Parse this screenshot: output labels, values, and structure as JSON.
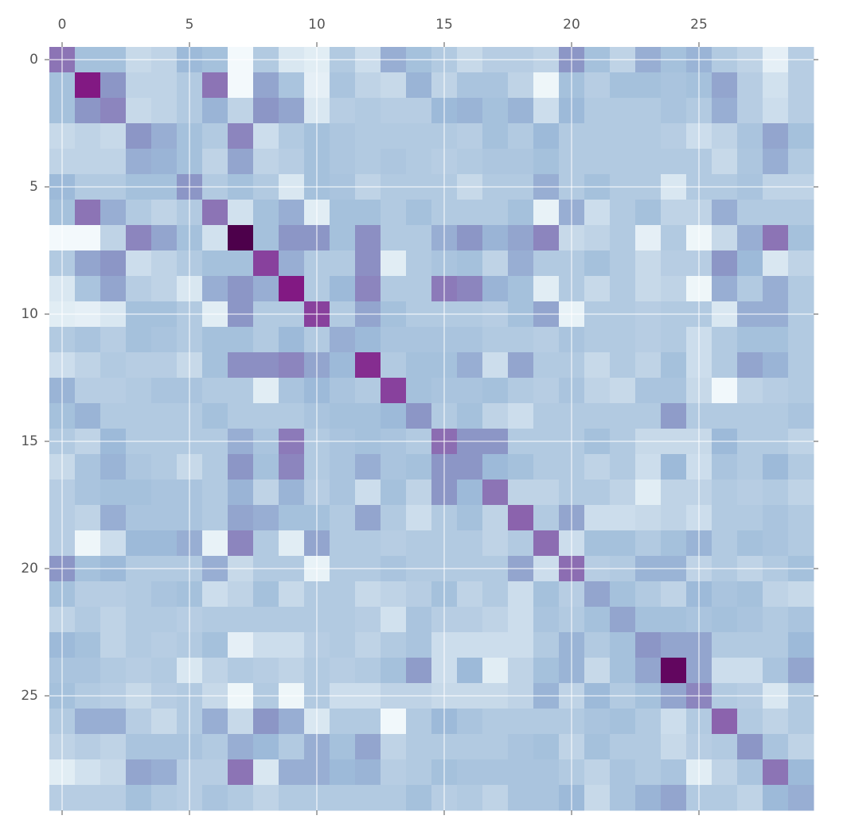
{
  "chart_data": {
    "type": "heatmap",
    "xlim": [
      -0.5,
      29.5
    ],
    "ylim": [
      29.5,
      -0.5
    ],
    "xticks": [
      0,
      5,
      10,
      15,
      20,
      25
    ],
    "yticks": [
      0,
      5,
      10,
      15,
      20,
      25
    ],
    "grid": true,
    "clim": [
      0,
      1
    ],
    "colors": [
      "#f7fcfd",
      "#e0ecf4",
      "#bfd3e6",
      "#9ebcda",
      "#8c96c6",
      "#8c6bb1",
      "#88419d",
      "#810f7c",
      "#4d004b"
    ],
    "z": [
      [
        0.6,
        0.35,
        0.35,
        0.22,
        0.25,
        0.38,
        0.35,
        0.02,
        0.3,
        0.15,
        0.12,
        0.3,
        0.2,
        0.42,
        0.35,
        0.3,
        0.22,
        0.28,
        0.28,
        0.25,
        0.5,
        0.35,
        0.25,
        0.42,
        0.35,
        0.4,
        0.3,
        0.25,
        0.1,
        0.28
      ],
      [
        0.35,
        0.85,
        0.5,
        0.25,
        0.25,
        0.3,
        0.6,
        0.02,
        0.45,
        0.33,
        0.1,
        0.33,
        0.25,
        0.22,
        0.4,
        0.25,
        0.33,
        0.33,
        0.25,
        0.05,
        0.35,
        0.28,
        0.35,
        0.35,
        0.33,
        0.35,
        0.45,
        0.28,
        0.18,
        0.28
      ],
      [
        0.35,
        0.5,
        0.55,
        0.22,
        0.25,
        0.3,
        0.4,
        0.25,
        0.5,
        0.45,
        0.15,
        0.28,
        0.3,
        0.28,
        0.28,
        0.38,
        0.4,
        0.35,
        0.4,
        0.2,
        0.38,
        0.3,
        0.3,
        0.3,
        0.33,
        0.3,
        0.42,
        0.28,
        0.2,
        0.28
      ],
      [
        0.22,
        0.25,
        0.22,
        0.5,
        0.42,
        0.35,
        0.3,
        0.55,
        0.2,
        0.3,
        0.35,
        0.32,
        0.3,
        0.3,
        0.3,
        0.3,
        0.28,
        0.35,
        0.3,
        0.38,
        0.3,
        0.3,
        0.3,
        0.3,
        0.28,
        0.2,
        0.25,
        0.33,
        0.45,
        0.35
      ],
      [
        0.25,
        0.25,
        0.25,
        0.42,
        0.4,
        0.35,
        0.25,
        0.45,
        0.25,
        0.28,
        0.35,
        0.32,
        0.3,
        0.32,
        0.3,
        0.28,
        0.3,
        0.32,
        0.32,
        0.35,
        0.3,
        0.3,
        0.3,
        0.3,
        0.3,
        0.3,
        0.22,
        0.32,
        0.42,
        0.3
      ],
      [
        0.38,
        0.3,
        0.3,
        0.35,
        0.35,
        0.5,
        0.3,
        0.35,
        0.3,
        0.15,
        0.35,
        0.33,
        0.25,
        0.3,
        0.3,
        0.3,
        0.22,
        0.3,
        0.3,
        0.42,
        0.3,
        0.35,
        0.3,
        0.3,
        0.15,
        0.3,
        0.3,
        0.33,
        0.25,
        0.25
      ],
      [
        0.35,
        0.6,
        0.42,
        0.3,
        0.25,
        0.3,
        0.6,
        0.18,
        0.35,
        0.42,
        0.12,
        0.35,
        0.35,
        0.3,
        0.35,
        0.3,
        0.3,
        0.3,
        0.35,
        0.08,
        0.42,
        0.2,
        0.3,
        0.35,
        0.25,
        0.25,
        0.42,
        0.3,
        0.3,
        0.3
      ],
      [
        0.02,
        0.02,
        0.25,
        0.55,
        0.45,
        0.35,
        0.18,
        1.0,
        0.35,
        0.5,
        0.5,
        0.35,
        0.52,
        0.3,
        0.3,
        0.42,
        0.5,
        0.4,
        0.45,
        0.55,
        0.22,
        0.25,
        0.3,
        0.1,
        0.3,
        0.05,
        0.22,
        0.42,
        0.6,
        0.35
      ],
      [
        0.3,
        0.45,
        0.5,
        0.2,
        0.25,
        0.3,
        0.35,
        0.35,
        0.75,
        0.42,
        0.3,
        0.3,
        0.52,
        0.12,
        0.3,
        0.33,
        0.35,
        0.25,
        0.42,
        0.3,
        0.3,
        0.35,
        0.3,
        0.22,
        0.28,
        0.28,
        0.5,
        0.38,
        0.15,
        0.25
      ],
      [
        0.15,
        0.33,
        0.45,
        0.28,
        0.25,
        0.15,
        0.42,
        0.5,
        0.42,
        0.85,
        0.3,
        0.38,
        0.55,
        0.3,
        0.3,
        0.58,
        0.55,
        0.4,
        0.35,
        0.12,
        0.3,
        0.22,
        0.3,
        0.22,
        0.25,
        0.05,
        0.42,
        0.3,
        0.42,
        0.3
      ],
      [
        0.12,
        0.1,
        0.15,
        0.35,
        0.35,
        0.3,
        0.12,
        0.5,
        0.3,
        0.3,
        0.75,
        0.3,
        0.45,
        0.35,
        0.3,
        0.3,
        0.3,
        0.28,
        0.35,
        0.45,
        0.08,
        0.3,
        0.3,
        0.28,
        0.3,
        0.3,
        0.15,
        0.42,
        0.42,
        0.3
      ],
      [
        0.3,
        0.33,
        0.28,
        0.35,
        0.33,
        0.3,
        0.35,
        0.35,
        0.3,
        0.38,
        0.3,
        0.42,
        0.38,
        0.33,
        0.33,
        0.33,
        0.33,
        0.3,
        0.3,
        0.28,
        0.33,
        0.3,
        0.3,
        0.28,
        0.3,
        0.2,
        0.3,
        0.35,
        0.35,
        0.3
      ],
      [
        0.2,
        0.25,
        0.3,
        0.28,
        0.28,
        0.22,
        0.35,
        0.52,
        0.52,
        0.55,
        0.45,
        0.38,
        0.8,
        0.3,
        0.35,
        0.35,
        0.42,
        0.2,
        0.45,
        0.3,
        0.3,
        0.22,
        0.3,
        0.25,
        0.35,
        0.2,
        0.3,
        0.45,
        0.4,
        0.3
      ],
      [
        0.4,
        0.28,
        0.28,
        0.3,
        0.33,
        0.33,
        0.3,
        0.3,
        0.12,
        0.33,
        0.38,
        0.33,
        0.3,
        0.75,
        0.35,
        0.33,
        0.33,
        0.35,
        0.3,
        0.28,
        0.33,
        0.25,
        0.22,
        0.33,
        0.33,
        0.22,
        0.03,
        0.25,
        0.28,
        0.3
      ],
      [
        0.35,
        0.4,
        0.3,
        0.3,
        0.3,
        0.3,
        0.35,
        0.3,
        0.3,
        0.3,
        0.33,
        0.35,
        0.35,
        0.38,
        0.5,
        0.3,
        0.35,
        0.25,
        0.2,
        0.3,
        0.3,
        0.3,
        0.3,
        0.3,
        0.48,
        0.3,
        0.3,
        0.3,
        0.3,
        0.33
      ],
      [
        0.3,
        0.25,
        0.38,
        0.3,
        0.3,
        0.3,
        0.3,
        0.42,
        0.33,
        0.58,
        0.3,
        0.33,
        0.35,
        0.33,
        0.3,
        0.62,
        0.5,
        0.5,
        0.3,
        0.3,
        0.3,
        0.35,
        0.3,
        0.22,
        0.22,
        0.22,
        0.38,
        0.3,
        0.3,
        0.25
      ],
      [
        0.22,
        0.33,
        0.4,
        0.32,
        0.3,
        0.22,
        0.3,
        0.5,
        0.35,
        0.55,
        0.3,
        0.33,
        0.42,
        0.33,
        0.35,
        0.5,
        0.5,
        0.38,
        0.35,
        0.3,
        0.3,
        0.25,
        0.3,
        0.2,
        0.38,
        0.2,
        0.33,
        0.3,
        0.38,
        0.3
      ],
      [
        0.28,
        0.33,
        0.35,
        0.35,
        0.33,
        0.33,
        0.3,
        0.4,
        0.25,
        0.4,
        0.28,
        0.33,
        0.2,
        0.35,
        0.25,
        0.5,
        0.38,
        0.6,
        0.25,
        0.25,
        0.3,
        0.3,
        0.25,
        0.12,
        0.25,
        0.25,
        0.3,
        0.28,
        0.3,
        0.25
      ],
      [
        0.28,
        0.25,
        0.42,
        0.33,
        0.33,
        0.33,
        0.3,
        0.45,
        0.42,
        0.35,
        0.35,
        0.3,
        0.45,
        0.3,
        0.2,
        0.3,
        0.35,
        0.25,
        0.65,
        0.3,
        0.45,
        0.2,
        0.2,
        0.22,
        0.25,
        0.2,
        0.3,
        0.3,
        0.33,
        0.3
      ],
      [
        0.28,
        0.05,
        0.2,
        0.38,
        0.38,
        0.42,
        0.08,
        0.55,
        0.3,
        0.12,
        0.45,
        0.3,
        0.3,
        0.28,
        0.3,
        0.3,
        0.3,
        0.25,
        0.3,
        0.62,
        0.2,
        0.35,
        0.35,
        0.3,
        0.35,
        0.4,
        0.3,
        0.35,
        0.33,
        0.3
      ],
      [
        0.5,
        0.35,
        0.38,
        0.3,
        0.3,
        0.3,
        0.42,
        0.22,
        0.3,
        0.3,
        0.08,
        0.3,
        0.3,
        0.33,
        0.3,
        0.3,
        0.3,
        0.3,
        0.45,
        0.2,
        0.62,
        0.28,
        0.3,
        0.4,
        0.4,
        0.25,
        0.3,
        0.25,
        0.3,
        0.35
      ],
      [
        0.35,
        0.28,
        0.28,
        0.3,
        0.33,
        0.35,
        0.2,
        0.25,
        0.35,
        0.22,
        0.3,
        0.3,
        0.22,
        0.25,
        0.28,
        0.35,
        0.25,
        0.3,
        0.2,
        0.35,
        0.28,
        0.45,
        0.35,
        0.3,
        0.25,
        0.38,
        0.33,
        0.35,
        0.25,
        0.22
      ],
      [
        0.25,
        0.3,
        0.25,
        0.3,
        0.3,
        0.28,
        0.3,
        0.3,
        0.3,
        0.3,
        0.3,
        0.3,
        0.28,
        0.18,
        0.33,
        0.28,
        0.28,
        0.25,
        0.2,
        0.33,
        0.3,
        0.35,
        0.45,
        0.35,
        0.35,
        0.33,
        0.35,
        0.33,
        0.3,
        0.33
      ],
      [
        0.38,
        0.35,
        0.25,
        0.3,
        0.28,
        0.3,
        0.35,
        0.1,
        0.2,
        0.2,
        0.28,
        0.3,
        0.25,
        0.3,
        0.33,
        0.2,
        0.2,
        0.2,
        0.2,
        0.3,
        0.4,
        0.3,
        0.35,
        0.5,
        0.45,
        0.45,
        0.3,
        0.3,
        0.3,
        0.38
      ],
      [
        0.33,
        0.33,
        0.3,
        0.28,
        0.3,
        0.15,
        0.25,
        0.3,
        0.28,
        0.25,
        0.3,
        0.28,
        0.3,
        0.35,
        0.48,
        0.2,
        0.38,
        0.12,
        0.25,
        0.35,
        0.4,
        0.22,
        0.35,
        0.45,
        0.95,
        0.45,
        0.2,
        0.2,
        0.33,
        0.45
      ],
      [
        0.35,
        0.3,
        0.28,
        0.22,
        0.28,
        0.3,
        0.22,
        0.05,
        0.3,
        0.05,
        0.3,
        0.2,
        0.2,
        0.25,
        0.25,
        0.22,
        0.22,
        0.22,
        0.25,
        0.4,
        0.25,
        0.38,
        0.3,
        0.35,
        0.45,
        0.55,
        0.3,
        0.28,
        0.15,
        0.3
      ],
      [
        0.3,
        0.42,
        0.42,
        0.28,
        0.22,
        0.3,
        0.42,
        0.22,
        0.5,
        0.42,
        0.15,
        0.3,
        0.3,
        0.03,
        0.3,
        0.38,
        0.33,
        0.3,
        0.3,
        0.3,
        0.3,
        0.33,
        0.35,
        0.3,
        0.2,
        0.3,
        0.65,
        0.3,
        0.25,
        0.3
      ],
      [
        0.25,
        0.28,
        0.25,
        0.33,
        0.33,
        0.33,
        0.3,
        0.42,
        0.38,
        0.3,
        0.42,
        0.35,
        0.45,
        0.25,
        0.3,
        0.3,
        0.3,
        0.3,
        0.33,
        0.35,
        0.25,
        0.35,
        0.3,
        0.3,
        0.22,
        0.28,
        0.3,
        0.5,
        0.33,
        0.25
      ],
      [
        0.12,
        0.18,
        0.22,
        0.45,
        0.42,
        0.28,
        0.28,
        0.6,
        0.15,
        0.42,
        0.42,
        0.38,
        0.4,
        0.28,
        0.3,
        0.35,
        0.33,
        0.33,
        0.33,
        0.33,
        0.3,
        0.25,
        0.33,
        0.3,
        0.33,
        0.12,
        0.25,
        0.33,
        0.6,
        0.38
      ],
      [
        0.28,
        0.28,
        0.28,
        0.35,
        0.3,
        0.28,
        0.33,
        0.3,
        0.25,
        0.3,
        0.3,
        0.3,
        0.3,
        0.3,
        0.35,
        0.28,
        0.3,
        0.25,
        0.33,
        0.33,
        0.38,
        0.22,
        0.33,
        0.4,
        0.45,
        0.3,
        0.3,
        0.25,
        0.38,
        0.42
      ]
    ]
  }
}
